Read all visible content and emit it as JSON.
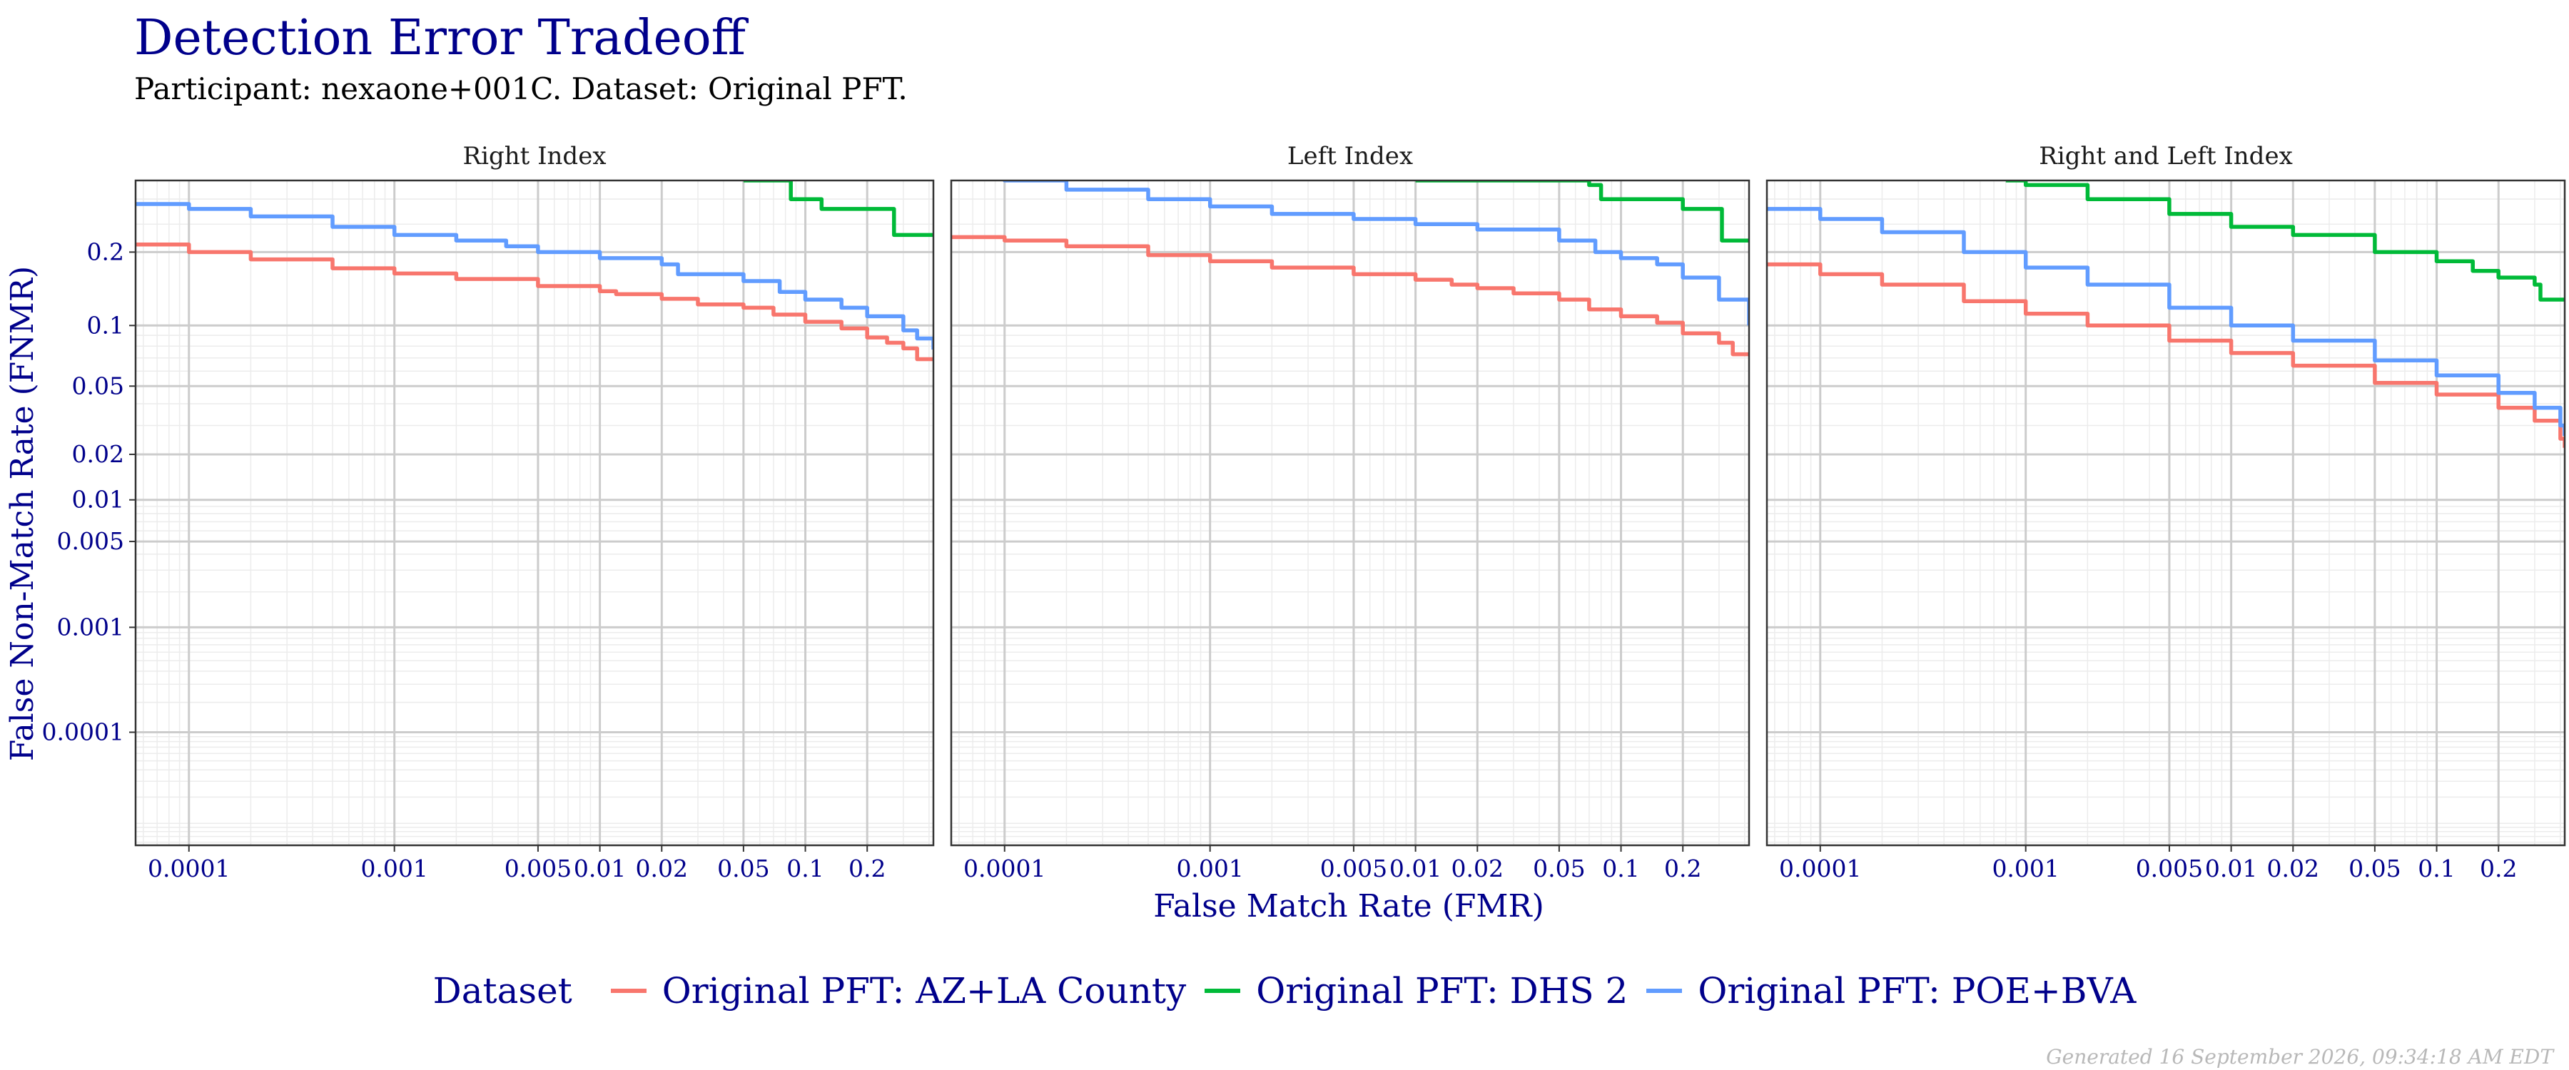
{
  "chart_data": {
    "type": "line",
    "title": "Detection Error Tradeoff",
    "subtitle": "Participant: nexaone+001C. Dataset: Original PFT.",
    "xlabel": "False Match Rate (FMR)",
    "ylabel": "False Non-Match Rate (FNMR)",
    "x_scale": "log",
    "y_scale": "probit",
    "xlim": [
      5.5e-05,
      0.42
    ],
    "ylim": [
      5.5e-06,
      0.34
    ],
    "x_ticks": [
      0.0001,
      0.001,
      0.005,
      0.01,
      0.02,
      0.05,
      0.1,
      0.2
    ],
    "x_tick_labels": [
      "0.0001",
      "0.001",
      "0.005",
      "0.01",
      "0.02",
      "0.05",
      "0.1",
      "0.2"
    ],
    "y_ticks": [
      0.0001,
      0.001,
      0.005,
      0.01,
      0.02,
      0.05,
      0.1,
      0.2
    ],
    "y_tick_labels": [
      "0.0001",
      "0.001",
      "0.005",
      "0.01",
      "0.02",
      "0.05",
      "0.1",
      "0.2"
    ],
    "grid": true,
    "legend_title": "Dataset",
    "legend_position": "bottom",
    "legend": [
      {
        "name": "Original PFT: AZ+LA County",
        "color": "#F8766D"
      },
      {
        "name": "Original PFT: DHS 2",
        "color": "#00BA38"
      },
      {
        "name": "Original PFT: POE+BVA",
        "color": "#619CFF"
      }
    ],
    "panels": [
      {
        "title": "Right Index",
        "series": [
          {
            "name": "Original PFT: AZ+LA County",
            "color": "#F8766D",
            "x": [
              5.5e-05,
              0.0001,
              0.0002,
              0.0005,
              0.001,
              0.002,
              0.005,
              0.01,
              0.012,
              0.02,
              0.03,
              0.05,
              0.07,
              0.1,
              0.15,
              0.2,
              0.25,
              0.3,
              0.35,
              0.42
            ],
            "y": [
              0.213,
              0.2,
              0.188,
              0.174,
              0.166,
              0.158,
              0.148,
              0.141,
              0.137,
              0.131,
              0.124,
              0.12,
              0.112,
              0.104,
              0.097,
              0.088,
              0.083,
              0.078,
              0.069,
              0.069
            ]
          },
          {
            "name": "Original PFT: DHS 2",
            "color": "#00BA38",
            "x": [
              0.05,
              0.08,
              0.085,
              0.12,
              0.2,
              0.25,
              0.27,
              0.42
            ],
            "y": [
              0.34,
              0.34,
              0.3,
              0.28,
              0.28,
              0.28,
              0.23,
              0.23
            ]
          },
          {
            "name": "Original PFT: POE+BVA",
            "color": "#619CFF",
            "x": [
              5.5e-05,
              0.0001,
              0.0002,
              0.0005,
              0.001,
              0.002,
              0.0035,
              0.005,
              0.01,
              0.02,
              0.024,
              0.05,
              0.07,
              0.075,
              0.1,
              0.15,
              0.2,
              0.27,
              0.3,
              0.35,
              0.42
            ],
            "y": [
              0.29,
              0.28,
              0.265,
              0.245,
              0.23,
              0.22,
              0.21,
              0.2,
              0.19,
              0.18,
              0.165,
              0.155,
              0.155,
              0.14,
              0.13,
              0.12,
              0.11,
              0.11,
              0.095,
              0.087,
              0.077
            ]
          }
        ]
      },
      {
        "title": "Left Index",
        "series": [
          {
            "name": "Original PFT: AZ+LA County",
            "color": "#F8766D",
            "x": [
              5.5e-05,
              0.0001,
              0.0002,
              0.0005,
              0.001,
              0.002,
              0.005,
              0.01,
              0.015,
              0.02,
              0.03,
              0.05,
              0.07,
              0.1,
              0.15,
              0.2,
              0.3,
              0.35,
              0.42
            ],
            "y": [
              0.226,
              0.22,
              0.21,
              0.195,
              0.185,
              0.175,
              0.165,
              0.157,
              0.15,
              0.145,
              0.138,
              0.13,
              0.118,
              0.11,
              0.103,
              0.092,
              0.083,
              0.073,
              0.073
            ]
          },
          {
            "name": "Original PFT: DHS 2",
            "color": "#00BA38",
            "x": [
              0.01,
              0.07,
              0.08,
              0.2,
              0.3,
              0.31,
              0.42
            ],
            "y": [
              0.34,
              0.33,
              0.3,
              0.28,
              0.28,
              0.22,
              0.22
            ]
          },
          {
            "name": "Original PFT: POE+BVA",
            "color": "#619CFF",
            "x": [
              5.5e-05,
              0.0001,
              0.0002,
              0.0005,
              0.001,
              0.002,
              0.005,
              0.01,
              0.02,
              0.05,
              0.07,
              0.075,
              0.1,
              0.15,
              0.2,
              0.3,
              0.42
            ],
            "y": [
              0.36,
              0.34,
              0.32,
              0.3,
              0.285,
              0.27,
              0.26,
              0.25,
              0.24,
              0.22,
              0.22,
              0.2,
              0.19,
              0.18,
              0.16,
              0.13,
              0.1
            ]
          }
        ]
      },
      {
        "title": "Right and Left Index",
        "series": [
          {
            "name": "Original PFT: AZ+LA County",
            "color": "#F8766D",
            "x": [
              5.5e-05,
              0.0001,
              0.0002,
              0.0005,
              0.001,
              0.002,
              0.005,
              0.01,
              0.02,
              0.05,
              0.1,
              0.2,
              0.3,
              0.4,
              0.42
            ],
            "y": [
              0.18,
              0.165,
              0.15,
              0.128,
              0.113,
              0.1,
              0.085,
              0.074,
              0.064,
              0.052,
              0.045,
              0.038,
              0.032,
              0.025,
              0.022
            ]
          },
          {
            "name": "Original PFT: DHS 2",
            "color": "#00BA38",
            "x": [
              0.0008,
              0.001,
              0.002,
              0.005,
              0.01,
              0.02,
              0.05,
              0.1,
              0.15,
              0.2,
              0.3,
              0.32,
              0.42
            ],
            "y": [
              0.34,
              0.33,
              0.3,
              0.27,
              0.245,
              0.23,
              0.2,
              0.185,
              0.17,
              0.16,
              0.15,
              0.13,
              0.13
            ]
          },
          {
            "name": "Original PFT: POE+BVA",
            "color": "#619CFF",
            "x": [
              5.5e-05,
              0.0001,
              0.0002,
              0.0005,
              0.001,
              0.002,
              0.005,
              0.01,
              0.02,
              0.05,
              0.1,
              0.2,
              0.3,
              0.4,
              0.42
            ],
            "y": [
              0.28,
              0.26,
              0.235,
              0.2,
              0.175,
              0.15,
              0.12,
              0.1,
              0.085,
              0.068,
              0.057,
              0.046,
              0.038,
              0.03,
              0.026
            ]
          }
        ]
      }
    ]
  },
  "footer": "Generated 16 September 2026, 09:34:18 AM EDT"
}
